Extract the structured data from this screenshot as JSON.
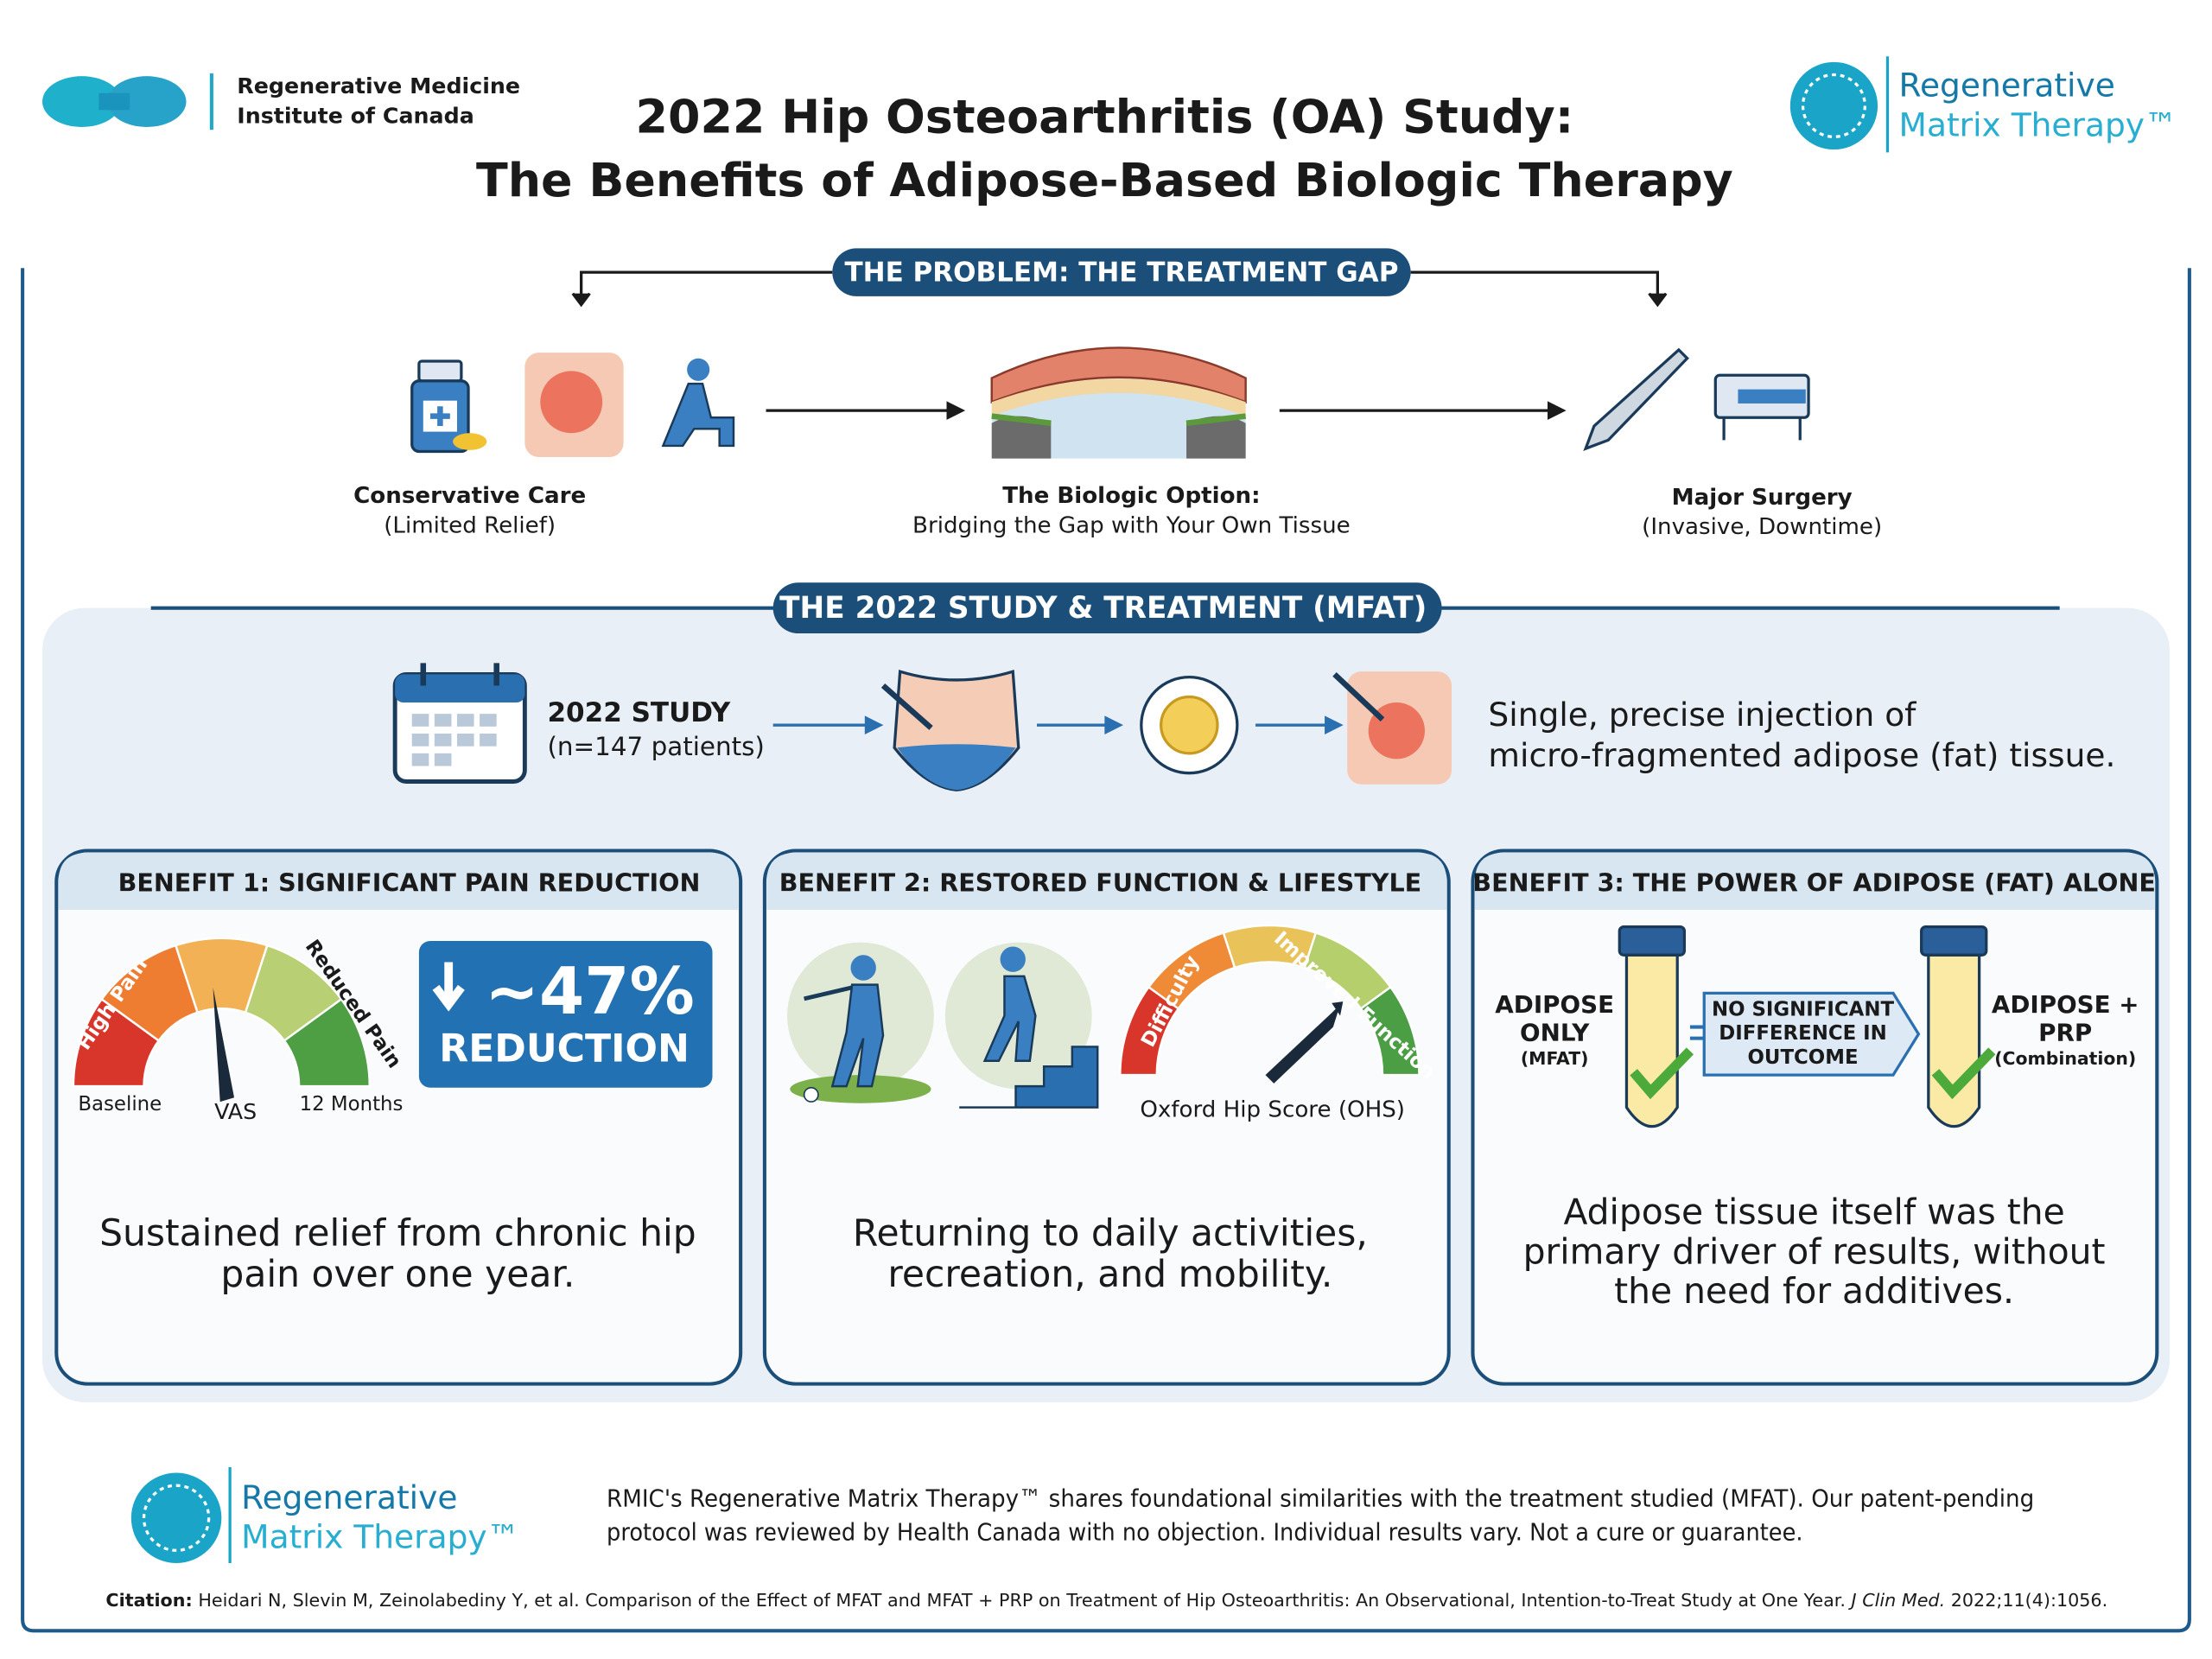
{
  "header": {
    "org_name": [
      "Regenerative Medicine",
      "Institute of Canada"
    ],
    "title": [
      "2022 Hip Osteoarthritis (OA) Study:",
      "The Benefits of Adipose-Based Biologic Therapy"
    ],
    "brand": [
      "Regenerative",
      "Matrix Therapy™"
    ]
  },
  "problem": {
    "heading": "THE PROBLEM: THE TREATMENT GAP",
    "options": [
      {
        "title": "Conservative Care",
        "note": "(Limited Relief)"
      },
      {
        "title": "The Biologic Option:",
        "note": "Bridging the Gap with Your Own Tissue"
      },
      {
        "title": "Major Surgery",
        "note": "(Invasive, Downtime)"
      }
    ]
  },
  "study": {
    "heading": "THE 2022 STUDY & TREATMENT (MFAT)",
    "label": "2022 STUDY",
    "patients": "(n=147 patients)",
    "description": [
      "Single, precise injection of",
      "micro-fragmented adipose (fat) tissue."
    ]
  },
  "benefits": [
    {
      "heading": "BENEFIT 1: SIGNIFICANT PAIN REDUCTION",
      "gauge": {
        "left": "High Pain",
        "right": "Reduced Pain",
        "start": "Baseline",
        "center": "VAS",
        "end": "12 Months"
      },
      "stat": "~47%",
      "stat_label": "REDUCTION",
      "text": [
        "Sustained relief from chronic hip",
        "pain over one year."
      ]
    },
    {
      "heading": "BENEFIT 2: RESTORED FUNCTION & LIFESTYLE",
      "gauge": {
        "left": "Difficulty",
        "right": "Improved Function",
        "center": "Oxford Hip Score (OHS)"
      },
      "text": [
        "Returning to daily activities,",
        "recreation, and mobility."
      ]
    },
    {
      "heading": "BENEFIT 3: THE POWER OF ADIPOSE (FAT) ALONE",
      "left": {
        "title": [
          "ADIPOSE",
          "ONLY"
        ],
        "note": "(MFAT)"
      },
      "comparison": [
        "NO SIGNIFICANT",
        "DIFFERENCE IN",
        "OUTCOME"
      ],
      "right": {
        "title": [
          "ADIPOSE +",
          "PRP"
        ],
        "note": "(Combination)"
      },
      "text": [
        "Adipose tissue itself was the",
        "primary driver of results, without",
        "the need for additives."
      ]
    }
  ],
  "footer": {
    "brand": [
      "Regenerative",
      "Matrix Therapy™"
    ],
    "disclaimer": [
      "RMIC's Regenerative Matrix Therapy™ shares foundational similarities with the treatment studied (MFAT). Our patent-pending",
      "protocol was reviewed by Health Canada with no objection. Individual results vary. Not a cure or guarantee."
    ],
    "citation_label": "Citation:",
    "citation": "Heidari N, Slevin M, Zeinolabediny Y, et al. Comparison of the Effect of MFAT and MFAT + PRP on Treatment of Hip Osteoarthritis: An Observational, Intention-to-Treat Study at One Year.",
    "journal": "J Clin Med.",
    "reference": "2022;11(4):1056."
  }
}
